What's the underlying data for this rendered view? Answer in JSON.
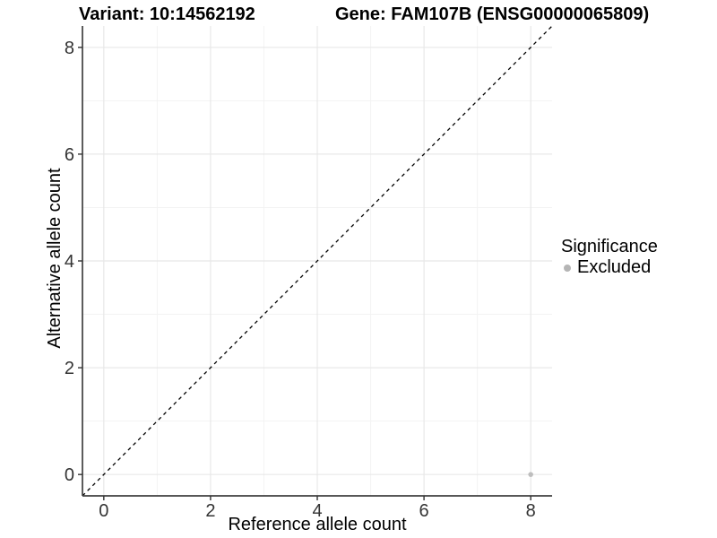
{
  "chart_data": {
    "type": "scatter",
    "title_left": "Variant: 10:14562192",
    "title_right": "Gene: FAM107B (ENSG00000065809)",
    "xlabel": "Reference allele count",
    "ylabel": "Alternative allele count",
    "xlim": [
      -0.4,
      8.4
    ],
    "ylim": [
      -0.4,
      8.4
    ],
    "x_ticks": [
      0,
      2,
      4,
      6,
      8
    ],
    "y_ticks": [
      0,
      2,
      4,
      6,
      8
    ],
    "x_minor_ticks": [
      1,
      3,
      5,
      7
    ],
    "y_minor_ticks": [
      1,
      3,
      5,
      7
    ],
    "grid": "major+minor",
    "reference_line": {
      "type": "identity",
      "style": "dashed",
      "color": "#000000"
    },
    "series": [
      {
        "name": "Excluded",
        "color": "#bebebe",
        "points": [
          [
            8,
            0
          ]
        ]
      }
    ],
    "legend": {
      "title": "Significance",
      "position": "right",
      "items": [
        {
          "label": "Excluded",
          "color": "#b5b5b5"
        }
      ]
    },
    "colors": {
      "major_grid": "#e8e8e8",
      "minor_grid": "#f3f3f3",
      "axis_line": "#404040",
      "tick_mark": "#333333",
      "tick_label": "#333333",
      "background": "#ffffff"
    }
  }
}
